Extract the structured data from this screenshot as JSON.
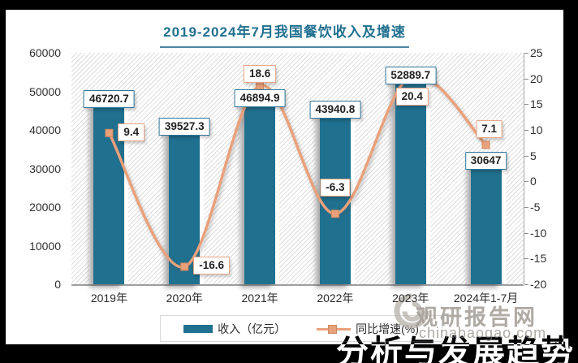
{
  "title": {
    "text": "2019-2024年7月我国餐饮收入及增速"
  },
  "chart_data": {
    "type": "bar+line",
    "categories": [
      "2019年",
      "2020年",
      "2021年",
      "2022年",
      "2023年",
      "2024年1-7月"
    ],
    "series": [
      {
        "name": "收入（亿元）",
        "type": "bar",
        "axis": "left",
        "values": [
          46720.7,
          39527.3,
          46894.9,
          43940.8,
          52889.7,
          30647
        ],
        "color": "#20708F"
      },
      {
        "name": "同比增速(%)",
        "type": "line",
        "axis": "right",
        "values": [
          9.4,
          -16.6,
          18.6,
          -6.3,
          20.4,
          7.1
        ],
        "color": "#E9A17C"
      }
    ],
    "title": "2019-2024年7月我国餐饮收入及增速",
    "left_axis": {
      "min": 0,
      "max": 60000,
      "step": 10000,
      "ticks": [
        "60000",
        "50000",
        "40000",
        "30000",
        "20000",
        "10000",
        "0"
      ]
    },
    "right_axis": {
      "min": -20,
      "max": 25,
      "step": 5,
      "ticks": [
        "25",
        "20",
        "15",
        "10",
        "5",
        "0",
        "-5",
        "-10",
        "-15",
        "-20"
      ]
    },
    "data_labels": {
      "bar": [
        "46720.7",
        "39527.3",
        "46894.9",
        "43940.8",
        "52889.7",
        "30647"
      ],
      "line": [
        "9.4",
        "-16.6",
        "18.6",
        "-6.3",
        "20.4",
        "7.1"
      ]
    },
    "grid": false,
    "legend_position": "bottom"
  },
  "legend": {
    "items": [
      {
        "label": "收入（亿元）",
        "swatch": "bar"
      },
      {
        "label": "同比增速(%)",
        "swatch": "line-marker"
      }
    ]
  },
  "watermark": {
    "site_name": "观研报告网",
    "site_url": "chinabaogao.com",
    "logo": "swirl-icon",
    "clipped_text_fragment": "分析与发展趋势"
  },
  "colors": {
    "bar": "#20708F",
    "line": "#E9A17C",
    "line_marker_border": "#CF8A5E",
    "title_text": "#21708F",
    "bar_label_border": "#2E7599",
    "line_label_border": "#E8A585",
    "axis_text": "#2F2F2F",
    "watermark_gray": "#A7A19A",
    "frame": "#000000"
  }
}
